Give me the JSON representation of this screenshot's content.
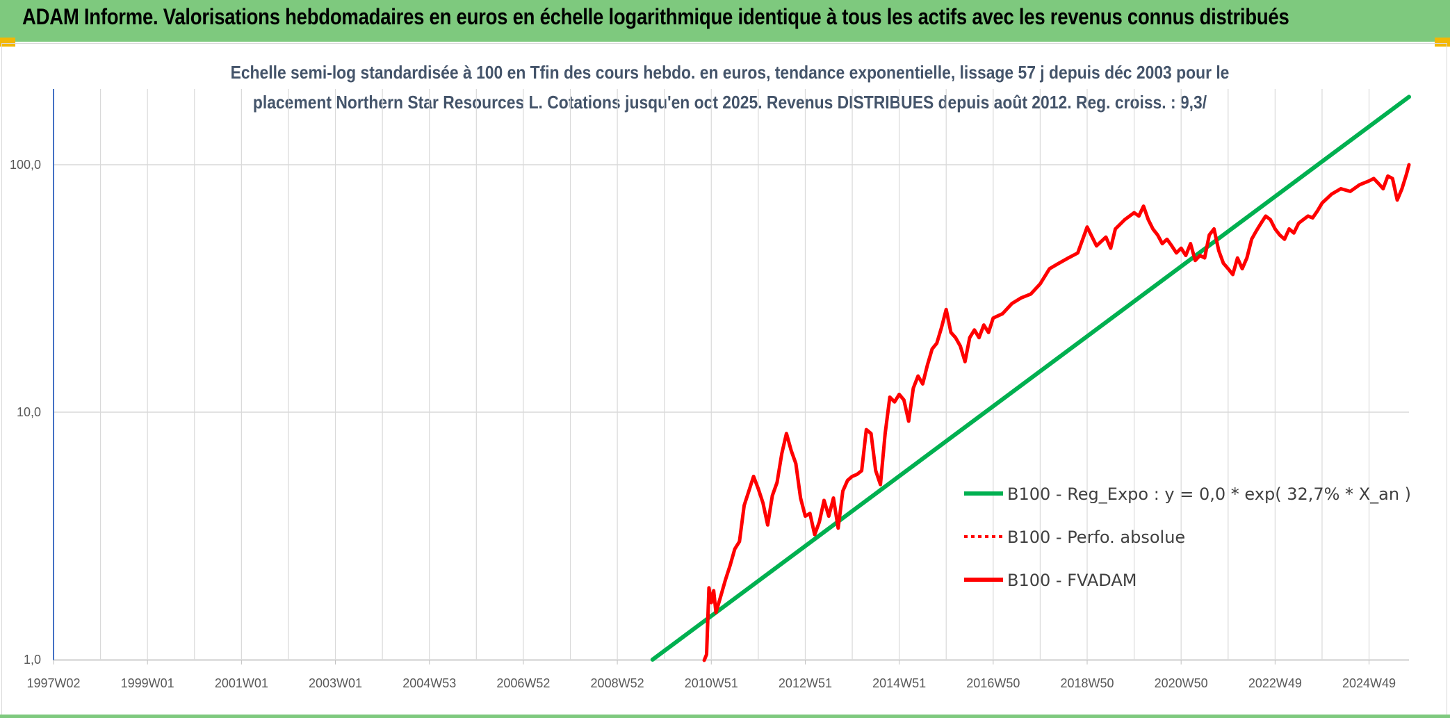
{
  "header": {
    "title": "ADAM Informe. Valorisations hebdomadaires en euros en échelle logarithmique identique à tous les actifs avec les revenus connus distribués"
  },
  "colors": {
    "header_bg": "#7ec97e",
    "corner": "#f2b705",
    "reg_line": "#00b050",
    "fvadam_line": "#ff0000",
    "grid": "#d9d9d9",
    "subtitle": "#44546a"
  },
  "chart_data": {
    "type": "line",
    "title_lines": [
      "Echelle semi-log standardisée à 100 en Tfin des cours hebdo. en euros, tendance exponentielle, lissage 57 j depuis déc 2003 pour le",
      "placement Northern Star Resources L. Cotations jusqu'en oct 2025. Revenus DISTRIBUES depuis août 2012. Reg. croiss. : 9,3/"
    ],
    "y_scale": "log",
    "ylim": [
      1,
      180
    ],
    "y_ticks": [
      {
        "value": 1,
        "label": "1,0"
      },
      {
        "value": 10,
        "label": "10,0"
      },
      {
        "value": 100,
        "label": "100,0"
      }
    ],
    "xlim": [
      1997.0,
      2025.85
    ],
    "x_ticks": [
      {
        "value": 1997.0,
        "label": "1997W02"
      },
      {
        "value": 1999.0,
        "label": "1999W01"
      },
      {
        "value": 2001.0,
        "label": "2001W01"
      },
      {
        "value": 2003.0,
        "label": "2003W01"
      },
      {
        "value": 2005.0,
        "label": "2004W53"
      },
      {
        "value": 2007.0,
        "label": "2006W52"
      },
      {
        "value": 2009.0,
        "label": "2008W52"
      },
      {
        "value": 2011.0,
        "label": "2010W51"
      },
      {
        "value": 2013.0,
        "label": "2012W51"
      },
      {
        "value": 2015.0,
        "label": "2014W51"
      },
      {
        "value": 2017.0,
        "label": "2016W50"
      },
      {
        "value": 2019.0,
        "label": "2018W50"
      },
      {
        "value": 2021.0,
        "label": "2020W50"
      },
      {
        "value": 2023.0,
        "label": "2022W49"
      },
      {
        "value": 2025.0,
        "label": "2024W49"
      }
    ],
    "grid": true,
    "legend_position": "right",
    "series": [
      {
        "name": "B100 - Reg_Expo : y = 0,0 * exp( 32,7% *  X_an )",
        "style": "solid",
        "color": "#00b050",
        "x": [
          2009.75,
          2025.85
        ],
        "y": [
          1.0,
          188
        ]
      },
      {
        "name": "B100 - Perfo. absolue",
        "style": "dotted",
        "color": "#ff0000",
        "x": [],
        "y": []
      },
      {
        "name": "B100 - FVADAM",
        "style": "solid",
        "color": "#ff0000",
        "x": [
          2010.85,
          2010.9,
          2010.95,
          2011.0,
          2011.05,
          2011.1,
          2011.2,
          2011.3,
          2011.4,
          2011.5,
          2011.6,
          2011.7,
          2011.8,
          2011.9,
          2012.0,
          2012.1,
          2012.2,
          2012.3,
          2012.4,
          2012.5,
          2012.6,
          2012.7,
          2012.8,
          2012.9,
          2013.0,
          2013.1,
          2013.2,
          2013.3,
          2013.4,
          2013.5,
          2013.6,
          2013.7,
          2013.8,
          2013.9,
          2014.0,
          2014.1,
          2014.2,
          2014.3,
          2014.4,
          2014.5,
          2014.6,
          2014.7,
          2014.8,
          2014.9,
          2015.0,
          2015.1,
          2015.2,
          2015.3,
          2015.4,
          2015.5,
          2015.6,
          2015.7,
          2015.8,
          2015.9,
          2016.0,
          2016.1,
          2016.2,
          2016.3,
          2016.4,
          2016.5,
          2016.6,
          2016.7,
          2016.8,
          2016.9,
          2017.0,
          2017.2,
          2017.4,
          2017.6,
          2017.8,
          2018.0,
          2018.2,
          2018.4,
          2018.6,
          2018.8,
          2019.0,
          2019.2,
          2019.4,
          2019.5,
          2019.6,
          2019.8,
          2020.0,
          2020.1,
          2020.2,
          2020.3,
          2020.4,
          2020.5,
          2020.6,
          2020.7,
          2020.8,
          2020.9,
          2021.0,
          2021.1,
          2021.2,
          2021.3,
          2021.4,
          2021.5,
          2021.6,
          2021.7,
          2021.8,
          2021.9,
          2022.0,
          2022.1,
          2022.2,
          2022.3,
          2022.4,
          2022.5,
          2022.6,
          2022.7,
          2022.8,
          2022.9,
          2023.0,
          2023.1,
          2023.2,
          2023.3,
          2023.4,
          2023.5,
          2023.6,
          2023.7,
          2023.8,
          2023.9,
          2024.0,
          2024.2,
          2024.4,
          2024.6,
          2024.8,
          2025.0,
          2025.1,
          2025.2,
          2025.3,
          2025.4,
          2025.5,
          2025.6,
          2025.7,
          2025.8,
          2025.85
        ],
        "y": [
          0.95,
          1.05,
          1.95,
          1.7,
          1.9,
          1.55,
          1.8,
          2.1,
          2.4,
          2.8,
          3.0,
          4.2,
          4.8,
          5.5,
          4.9,
          4.3,
          3.5,
          4.6,
          5.2,
          6.8,
          8.2,
          7.0,
          6.2,
          4.5,
          3.8,
          3.9,
          3.2,
          3.6,
          4.4,
          3.8,
          4.5,
          3.4,
          4.8,
          5.3,
          5.5,
          5.6,
          5.8,
          8.5,
          8.2,
          5.8,
          5.1,
          8.2,
          11.5,
          11.0,
          11.8,
          11.2,
          9.2,
          12.5,
          14.0,
          13.0,
          15.5,
          18.0,
          19.0,
          22.0,
          26.0,
          21.0,
          20.0,
          18.5,
          16.0,
          20.0,
          21.5,
          20.0,
          22.5,
          21.0,
          24.0,
          25.0,
          27.5,
          29.0,
          30.0,
          33.0,
          38.0,
          40.0,
          42.0,
          44.0,
          56.0,
          47.0,
          51.0,
          46.0,
          55.0,
          60.0,
          64.0,
          62.0,
          68.0,
          60.0,
          55.0,
          52.0,
          48.0,
          50.0,
          47.0,
          44.0,
          46.0,
          43.0,
          48.0,
          41.0,
          43.0,
          42.0,
          52.0,
          55.0,
          45.0,
          40.0,
          38.0,
          36.0,
          42.0,
          38.0,
          42.0,
          50.0,
          54.0,
          58.0,
          62.0,
          60.0,
          55.0,
          52.0,
          50.0,
          55.0,
          53.0,
          58.0,
          60.0,
          62.0,
          61.0,
          65.0,
          70.0,
          76.0,
          80.0,
          78.0,
          83.0,
          86.0,
          88.0,
          84.0,
          80.0,
          90.0,
          88.0,
          72.0,
          80.0,
          92.0,
          100.0
        ]
      }
    ]
  }
}
